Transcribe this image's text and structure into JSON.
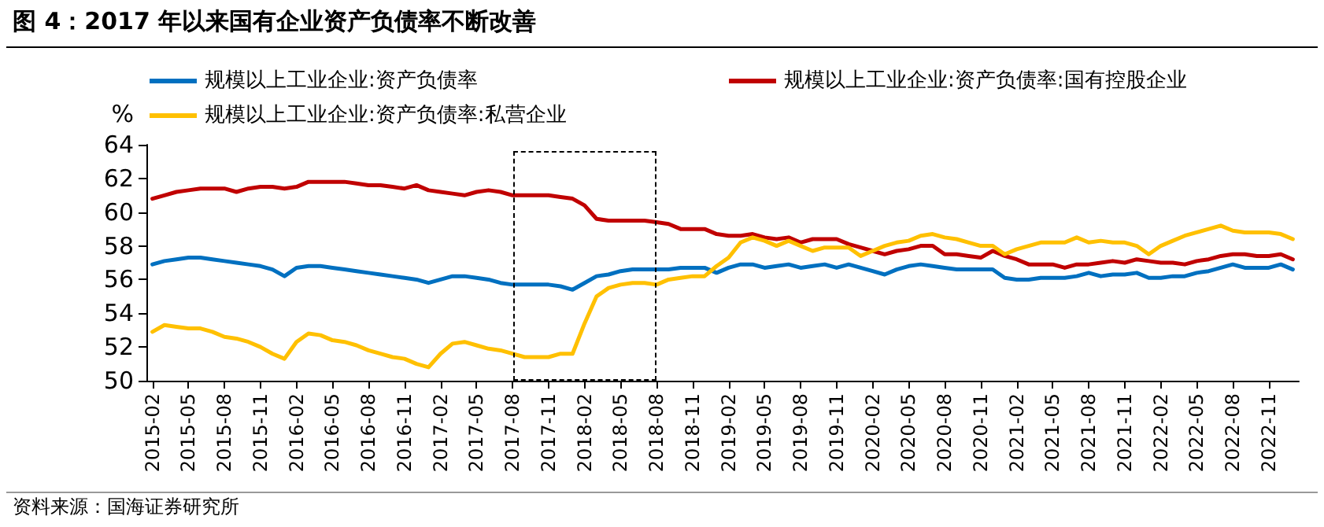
{
  "chart_data": {
    "type": "line",
    "title": "图 4：2017 年以来国有企业资产负债率不断改善",
    "ylabel": "%",
    "categories": [
      "2015-02",
      null,
      null,
      "2015-05",
      null,
      null,
      "2015-08",
      null,
      null,
      "2015-11",
      null,
      null,
      "2016-02",
      null,
      null,
      "2016-05",
      null,
      null,
      "2016-08",
      null,
      null,
      "2016-11",
      null,
      null,
      "2017-02",
      null,
      null,
      "2017-05",
      null,
      null,
      "2017-08",
      null,
      null,
      "2017-11",
      null,
      null,
      "2018-02",
      null,
      null,
      "2018-05",
      null,
      null,
      "2018-08",
      null,
      null,
      "2018-11",
      null,
      null,
      "2019-02",
      null,
      null,
      "2019-05",
      null,
      null,
      "2019-08",
      null,
      null,
      "2019-11",
      null,
      null,
      "2020-02",
      null,
      null,
      "2020-05",
      null,
      null,
      "2020-08",
      null,
      null,
      "2020-11",
      null,
      null,
      "2021-02",
      null,
      null,
      "2021-05",
      null,
      null,
      "2021-08",
      null,
      null,
      "2021-11",
      null,
      null,
      "2022-02",
      null,
      null,
      "2022-05",
      null,
      null,
      "2022-08",
      null,
      null,
      "2022-11",
      null,
      null
    ],
    "series": [
      {
        "name": "规模以上工业企业:资产负债率",
        "color": "#0070c0",
        "values": [
          56.9,
          57.1,
          57.2,
          57.3,
          57.3,
          57.2,
          57.1,
          57.0,
          56.9,
          56.8,
          56.6,
          56.2,
          56.7,
          56.8,
          56.8,
          56.7,
          56.6,
          56.5,
          56.4,
          56.3,
          56.2,
          56.1,
          56.0,
          55.8,
          56.0,
          56.2,
          56.2,
          56.1,
          56.0,
          55.8,
          55.7,
          55.7,
          55.7,
          55.7,
          55.6,
          55.4,
          55.8,
          56.2,
          56.3,
          56.5,
          56.6,
          56.6,
          56.6,
          56.6,
          56.7,
          56.7,
          56.7,
          56.4,
          56.7,
          56.9,
          56.9,
          56.7,
          56.8,
          56.9,
          56.7,
          56.8,
          56.9,
          56.7,
          56.9,
          56.7,
          56.5,
          56.3,
          56.6,
          56.8,
          56.9,
          56.8,
          56.7,
          56.6,
          56.6,
          56.6,
          56.6,
          56.1,
          56.0,
          56.0,
          56.1,
          56.1,
          56.1,
          56.2,
          56.4,
          56.2,
          56.3,
          56.3,
          56.4,
          56.1,
          56.1,
          56.2,
          56.2,
          56.4,
          56.5,
          56.7,
          56.9,
          56.7,
          56.7,
          56.7,
          56.9,
          56.6
        ]
      },
      {
        "name": "规模以上工业企业:资产负债率:国有控股企业",
        "color": "#c00000",
        "values": [
          60.8,
          61.0,
          61.2,
          61.3,
          61.4,
          61.4,
          61.4,
          61.2,
          61.4,
          61.5,
          61.5,
          61.4,
          61.5,
          61.8,
          61.8,
          61.8,
          61.8,
          61.7,
          61.6,
          61.6,
          61.5,
          61.4,
          61.6,
          61.3,
          61.2,
          61.1,
          61.0,
          61.2,
          61.3,
          61.2,
          61.0,
          61.0,
          61.0,
          61.0,
          60.9,
          60.8,
          60.4,
          59.6,
          59.5,
          59.5,
          59.5,
          59.5,
          59.4,
          59.3,
          59.0,
          59.0,
          59.0,
          58.7,
          58.6,
          58.6,
          58.7,
          58.5,
          58.4,
          58.5,
          58.2,
          58.4,
          58.4,
          58.4,
          58.1,
          57.9,
          57.7,
          57.5,
          57.7,
          57.8,
          58.0,
          58.0,
          57.5,
          57.5,
          57.4,
          57.3,
          57.7,
          57.4,
          57.2,
          56.9,
          56.9,
          56.9,
          56.7,
          56.9,
          56.9,
          57.0,
          57.1,
          57.0,
          57.2,
          57.1,
          57.0,
          57.0,
          56.9,
          57.1,
          57.2,
          57.4,
          57.5,
          57.5,
          57.4,
          57.4,
          57.5,
          57.2
        ]
      },
      {
        "name": "规模以上工业企业:资产负债率:私营企业",
        "color": "#ffc000",
        "values": [
          52.9,
          53.3,
          53.2,
          53.1,
          53.1,
          52.9,
          52.6,
          52.5,
          52.3,
          52.0,
          51.6,
          51.3,
          52.3,
          52.8,
          52.7,
          52.4,
          52.3,
          52.1,
          51.8,
          51.6,
          51.4,
          51.3,
          51.0,
          50.8,
          51.6,
          52.2,
          52.3,
          52.1,
          51.9,
          51.8,
          51.6,
          51.4,
          51.4,
          51.4,
          51.6,
          51.6,
          53.4,
          55.0,
          55.5,
          55.7,
          55.8,
          55.8,
          55.7,
          56.0,
          56.1,
          56.2,
          56.2,
          56.8,
          57.3,
          58.2,
          58.5,
          58.3,
          58.0,
          58.3,
          58.0,
          57.7,
          57.9,
          57.9,
          57.9,
          57.4,
          57.7,
          58.0,
          58.2,
          58.3,
          58.6,
          58.7,
          58.5,
          58.4,
          58.2,
          58.0,
          58.0,
          57.5,
          57.8,
          58.0,
          58.2,
          58.2,
          58.2,
          58.5,
          58.2,
          58.3,
          58.2,
          58.2,
          58.0,
          57.5,
          58.0,
          58.3,
          58.6,
          58.8,
          59.0,
          59.2,
          58.9,
          58.8,
          58.8,
          58.8,
          58.7,
          58.4
        ]
      }
    ],
    "ylim": [
      50,
      64
    ],
    "yticks": [
      50,
      52,
      54,
      56,
      58,
      60,
      62,
      64
    ],
    "grid": false,
    "legend": "top",
    "marker": "none",
    "line_style": "solid",
    "annotations": [
      "资料来源：国海证券研究所"
    ]
  }
}
